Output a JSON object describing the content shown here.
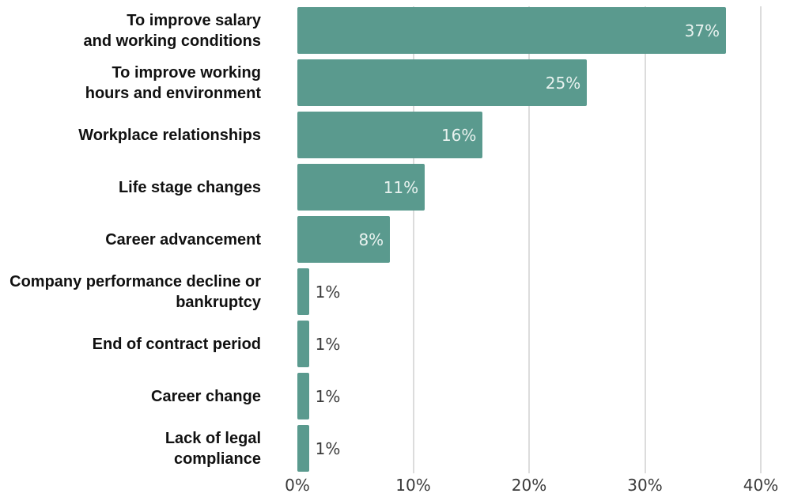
{
  "chart_data": {
    "type": "bar",
    "orientation": "horizontal",
    "categories": [
      [
        "To improve salary",
        "and working conditions"
      ],
      [
        "To improve working",
        "hours and environment"
      ],
      [
        "Workplace relationships"
      ],
      [
        "Life stage changes"
      ],
      [
        "Career advancement"
      ],
      [
        "Company performance decline or",
        "bankruptcy"
      ],
      [
        "End of contract period"
      ],
      [
        "Career change"
      ],
      [
        "Lack of legal",
        "compliance"
      ]
    ],
    "values": [
      37,
      25,
      16,
      11,
      8,
      1,
      1,
      1,
      1
    ],
    "value_labels": [
      "37%",
      "25%",
      "16%",
      "11%",
      "8%",
      "1%",
      "1%",
      "1%",
      "1%"
    ],
    "xlim": [
      0,
      40
    ],
    "x_ticks": [
      0,
      10,
      20,
      30,
      40
    ],
    "x_tick_labels": [
      "0%",
      "10%",
      "20%",
      "30%",
      "40%"
    ],
    "grid": "vertical",
    "legend": "none",
    "title": "",
    "xlabel": "",
    "ylabel": "",
    "colors": {
      "bar": "#5a9a8e",
      "label_inside": "#e8f2ef",
      "label_outside": "#3a3a3a",
      "grid": "#dcdcdc"
    }
  }
}
